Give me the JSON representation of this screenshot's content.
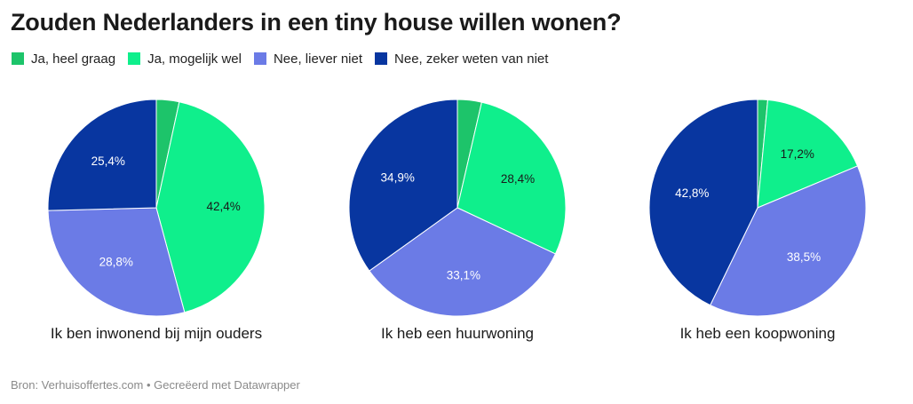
{
  "title": "Zouden Nederlanders in een tiny house willen wonen?",
  "source": "Bron: Verhuisoffertes.com • Gecreëerd met Datawrapper",
  "chart_data": {
    "type": "pie",
    "title": "Zouden Nederlanders in een tiny house willen wonen?",
    "legend_placement": "top-left",
    "categories": [
      "Ja, heel graag",
      "Ja, mogelijk wel",
      "Nee, liever niet",
      "Nee, zeker weten van niet"
    ],
    "colors": [
      "#1DC46A",
      "#0FEF8C",
      "#6B7BE6",
      "#0836A0"
    ],
    "label_colors": [
      "#1a1a1a",
      "#1a1a1a",
      "#ffffff",
      "#ffffff"
    ],
    "pies": [
      {
        "name": "Ik ben inwonend bij mijn ouders",
        "values": [
          3.4,
          42.4,
          28.8,
          25.4
        ],
        "labels": [
          "",
          "42,4%",
          "28,8%",
          "25,4%"
        ]
      },
      {
        "name": "Ik heb een huurwoning",
        "values": [
          3.6,
          28.4,
          33.1,
          34.9
        ],
        "labels": [
          "",
          "28,4%",
          "33,1%",
          "34,9%"
        ]
      },
      {
        "name": "Ik heb een koopwoning",
        "values": [
          1.5,
          17.2,
          38.5,
          42.8
        ],
        "labels": [
          "",
          "17,2%",
          "38,5%",
          "42,8%"
        ]
      }
    ]
  }
}
